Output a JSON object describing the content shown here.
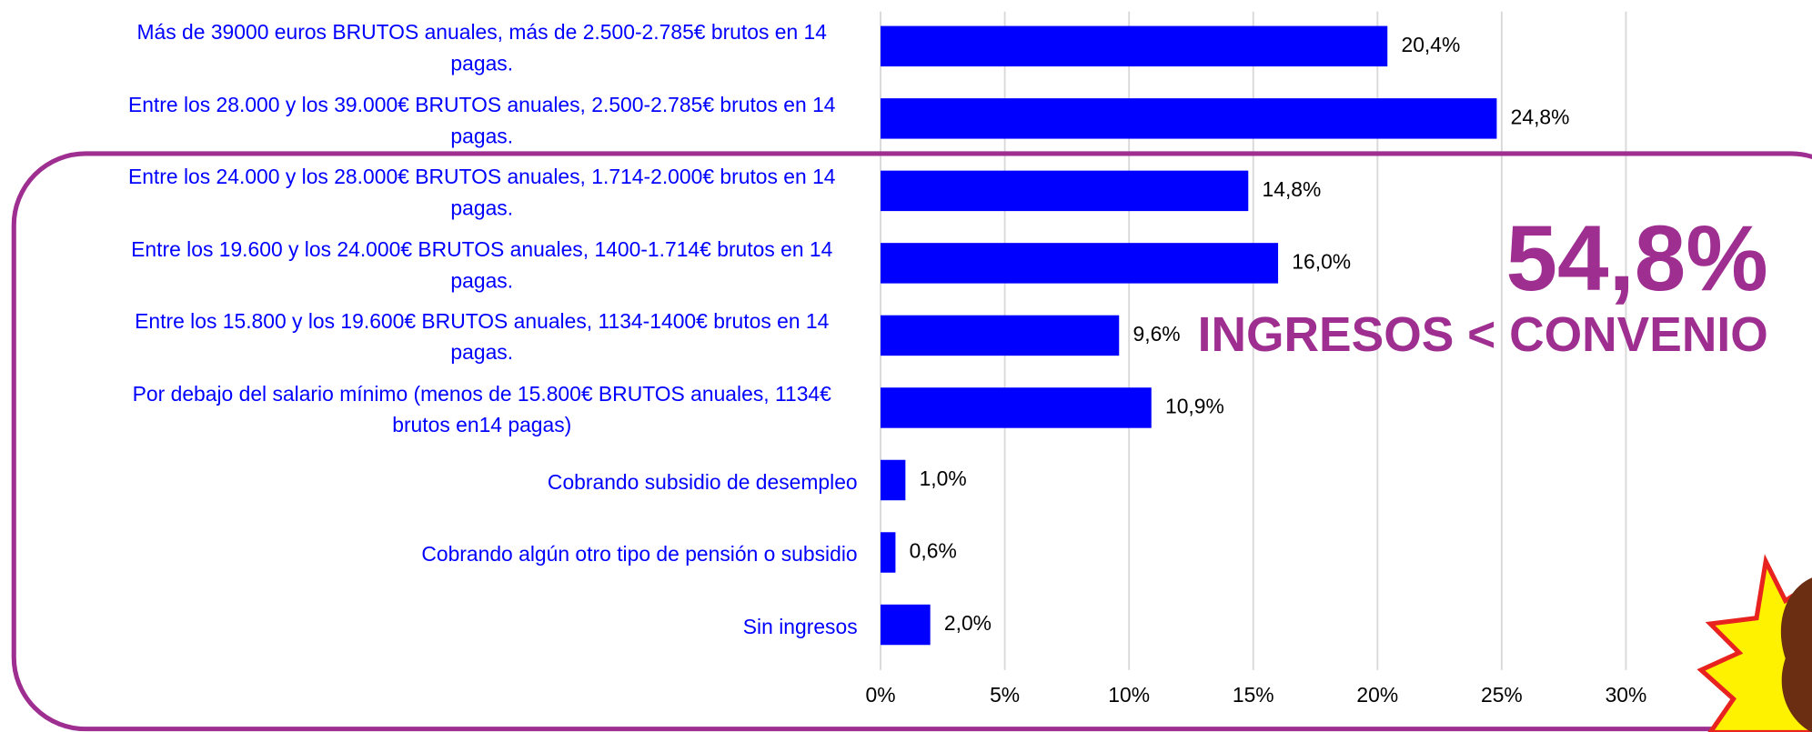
{
  "chart_data": {
    "type": "barh",
    "categories": [
      "Más de 39000 euros BRUTOS anuales, más de 2.500-2.785€ brutos en 14 pagas.",
      "Entre los 28.000 y los 39.000€ BRUTOS anuales, 2.500-2.785€ brutos en 14 pagas.",
      "Entre los 24.000 y los 28.000€ BRUTOS anuales, 1.714-2.000€ brutos en 14 pagas.",
      "Entre los 19.600 y los 24.000€ BRUTOS anuales, 1400-1.714€ brutos en 14 pagas.",
      "Entre los 15.800 y los 19.600€ BRUTOS anuales, 1134-1400€ brutos en 14 pagas.",
      "Por debajo del salario mínimo (menos de 15.800€ BRUTOS anuales, 1134€ brutos en14 pagas)",
      "Cobrando subsidio de desempleo",
      "Cobrando algún otro tipo de pensión o subsidio",
      "Sin ingresos"
    ],
    "values": [
      20.4,
      24.8,
      14.8,
      16.0,
      9.6,
      10.9,
      1.0,
      0.6,
      2.0
    ],
    "value_labels": [
      "20,4%",
      "24,8%",
      "14,8%",
      "16,0%",
      "9,6%",
      "10,9%",
      "1,0%",
      "0,6%",
      "2,0%"
    ],
    "color": "#0000ff",
    "xlim": [
      0,
      30
    ],
    "xticks": [
      {
        "value": 0,
        "label": "0%"
      },
      {
        "value": 5,
        "label": "5%"
      },
      {
        "value": 10,
        "label": "10%"
      },
      {
        "value": 15,
        "label": "15%"
      },
      {
        "value": 20,
        "label": "20%"
      },
      {
        "value": 25,
        "label": "25%"
      },
      {
        "value": 30,
        "label": "30%"
      }
    ],
    "grid": true,
    "annotations": [
      "54,8%",
      "INGRESOS < CONVENIO"
    ]
  }
}
